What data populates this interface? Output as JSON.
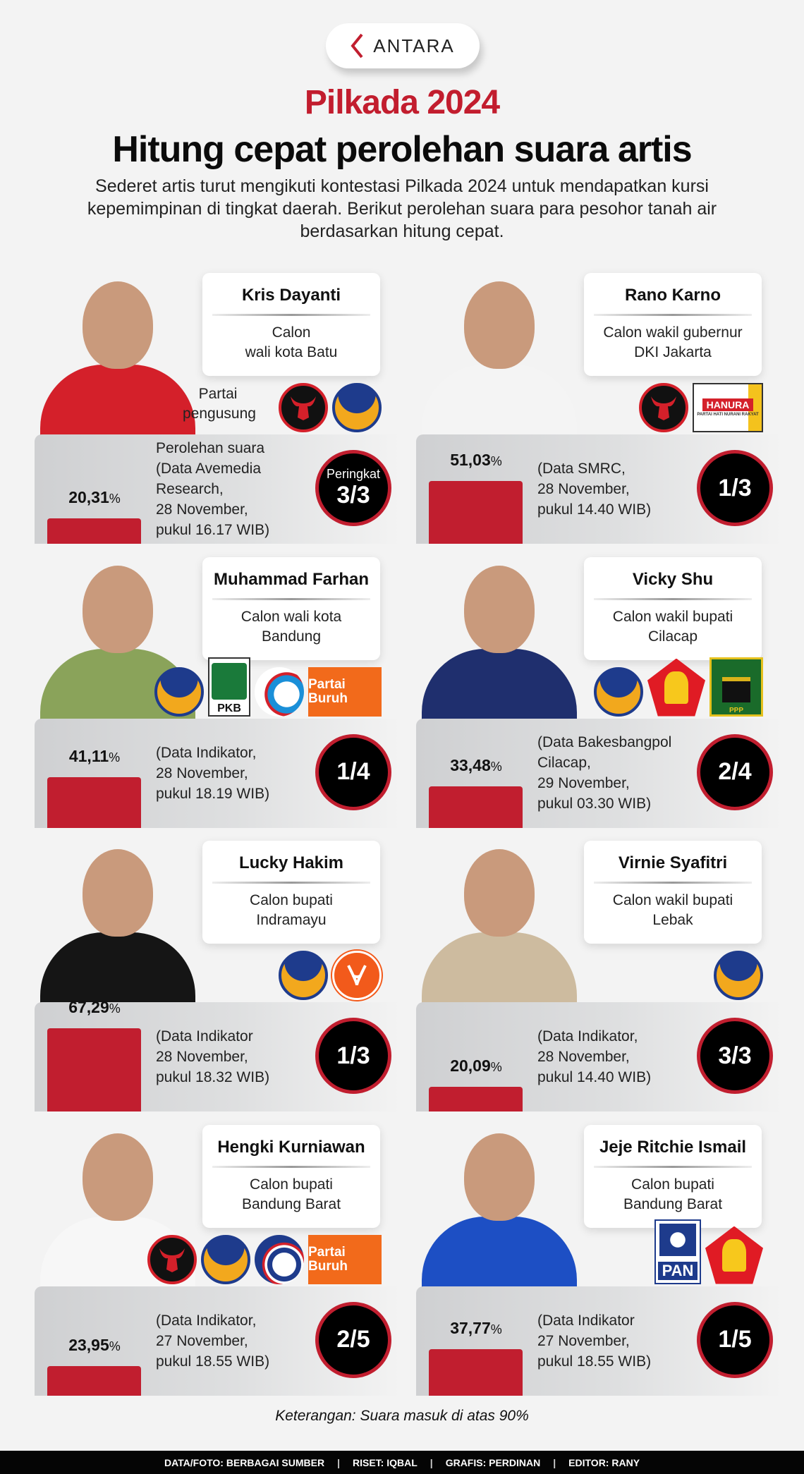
{
  "brand": {
    "logo_text": "ANTARA",
    "accent": "#c11e2f"
  },
  "header": {
    "title_red": "Pilkada 2024",
    "title": "Hitung cepat perolehan suara artis",
    "subtitle": "Sederet artis turut mengikuti kontestasi Pilkada 2024 untuk mendapatkan kursi kepemimpinan di tingkat daerah. Berikut perolehan suara para pesohor tanah air berdasarkan hitung cepat."
  },
  "labels": {
    "party_label": "Partai pengusung",
    "votes_label": "Perolehan suara",
    "rank_label": "Peringkat"
  },
  "candidates": [
    {
      "name": "Kris Dayanti",
      "role": [
        "Calon",
        "wali kota Batu"
      ],
      "percent": 20.31,
      "percent_text": "20,31",
      "source": [
        "(Data Avemedia",
        "Research,",
        "28 November,",
        "pukul 16.17 WIB)"
      ],
      "rank": "3/3",
      "parties": [
        "pdip",
        "nasdem"
      ],
      "outfit": "#d4202a",
      "show_labels": true
    },
    {
      "name": "Rano Karno",
      "role": [
        "Calon wakil gubernur",
        "DKI Jakarta"
      ],
      "percent": 51.03,
      "percent_text": "51,03",
      "source": [
        "(Data SMRC,",
        "28 November,",
        "pukul 14.40 WIB)"
      ],
      "rank": "1/3",
      "parties": [
        "pdip",
        "hanura"
      ],
      "outfit": "#f4f4f4"
    },
    {
      "name": "Muhammad Farhan",
      "role": [
        "Calon wali kota",
        "Bandung"
      ],
      "percent": 41.11,
      "percent_text": "41,11",
      "source": [
        "(Data Indikator,",
        "28 November,",
        "pukul 18.19 WIB)"
      ],
      "rank": "1/4",
      "parties": [
        "nasdem",
        "pkb",
        "gelora",
        "buruh"
      ],
      "outfit": "#8aa35a"
    },
    {
      "name": "Vicky Shu",
      "role": [
        "Calon wakil bupati",
        "Cilacap"
      ],
      "percent": 33.48,
      "percent_text": "33,48",
      "source": [
        "(Data Bakesbangpol",
        "Cilacap,",
        "29 November,",
        "pukul 03.30 WIB)"
      ],
      "rank": "2/4",
      "parties": [
        "nasdem",
        "gerindra",
        "ppp"
      ],
      "outfit": "#1f2f6e"
    },
    {
      "name": "Lucky Hakim",
      "role": [
        "Calon bupati",
        "Indramayu"
      ],
      "percent": 67.29,
      "percent_text": "67,29",
      "source": [
        "(Data Indikator",
        "28 November,",
        "pukul 18.32 WIB)"
      ],
      "rank": "1/3",
      "parties": [
        "nasdem",
        "pks"
      ],
      "outfit": "#151515"
    },
    {
      "name": "Virnie Syafitri",
      "role": [
        "Calon wakil bupati",
        "Lebak"
      ],
      "percent": 20.09,
      "percent_text": "20,09",
      "source": [
        "(Data Indikator,",
        "28 November,",
        "pukul 14.40 WIB)"
      ],
      "rank": "3/3",
      "parties": [
        "nasdem"
      ],
      "outfit": "#cdbb9f"
    },
    {
      "name": "Hengki Kurniawan",
      "role": [
        "Calon bupati",
        "Bandung Barat"
      ],
      "percent": 23.95,
      "percent_text": "23,95",
      "source": [
        "(Data Indikator,",
        "27 November,",
        "pukul 18.55 WIB)"
      ],
      "rank": "2/5",
      "parties": [
        "pdip",
        "nasdem",
        "perindo",
        "buruh"
      ],
      "outfit": "#f7f7f7"
    },
    {
      "name": "Jeje Ritchie Ismail",
      "role": [
        "Calon bupati",
        "Bandung Barat"
      ],
      "percent": 37.77,
      "percent_text": "37,77",
      "source": [
        "(Data Indikator",
        "27 November,",
        "pukul 18.55 WIB)"
      ],
      "rank": "1/5",
      "parties": [
        "pan",
        "gerindra"
      ],
      "outfit": "#1d4fc4"
    }
  ],
  "party_logos": {
    "pdip": {
      "text": ""
    },
    "nasdem": {
      "text": ""
    },
    "hanura": {
      "text": "HANURA",
      "subtext": "PARTAI HATI NURANI RAKYAT"
    },
    "pkb": {
      "text": "PKB"
    },
    "gelora": {
      "text": ""
    },
    "buruh": {
      "text": "Partai Buruh"
    },
    "gerindra": {
      "text": ""
    },
    "ppp": {
      "text": "PPP"
    },
    "pks": {
      "text": ""
    },
    "perindo": {
      "text": ""
    },
    "pan": {
      "text": "PAN"
    }
  },
  "note": "Keterangan: Suara masuk di atas 90%",
  "footer": [
    "DATA/FOTO: BERBAGAI SUMBER",
    "RISET: IQBAL",
    "GRAFIS: PERDINAN",
    "EDITOR: RANY"
  ]
}
